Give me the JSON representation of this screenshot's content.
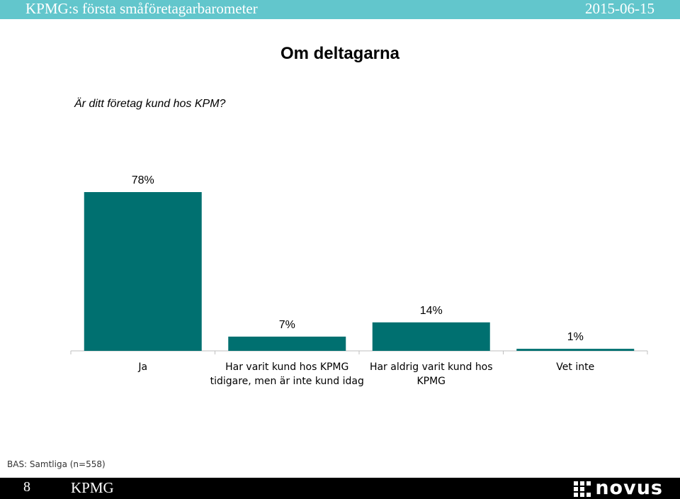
{
  "header": {
    "left": "KPMG:s första småföretagarbarometer",
    "right": "2015-06-15"
  },
  "page_title": "Om deltagarna",
  "question": "Är ditt företag kund hos KPM?",
  "chart_data": {
    "type": "bar",
    "categories": [
      [
        "Ja"
      ],
      [
        "Har varit kund hos KPMG",
        "tidigare, men är inte kund idag"
      ],
      [
        "Har aldrig varit kund hos",
        "KPMG"
      ],
      [
        "Vet inte"
      ]
    ],
    "values": [
      78,
      7,
      14,
      1
    ],
    "value_labels": [
      "78%",
      "7%",
      "14%",
      "1%"
    ],
    "ylim": [
      0,
      100
    ],
    "grid": false,
    "bar_color": "#007070"
  },
  "base_note": "BAS: Samtliga (n=558)",
  "footer": {
    "page_number": "8",
    "org": "KPMG",
    "logo": "novus"
  },
  "colors": {
    "top_bar": "#62c6cc",
    "bar": "#007070",
    "footer": "#000000"
  }
}
